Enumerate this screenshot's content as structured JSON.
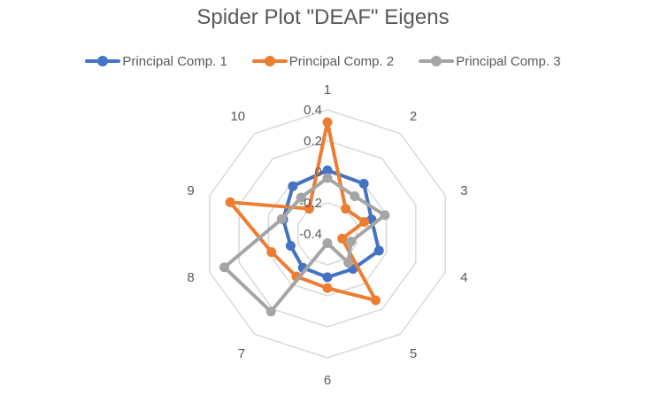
{
  "chart_data": {
    "type": "radar",
    "title": "Spider Plot \"DEAF\" Eigens",
    "categories": [
      "1",
      "2",
      "3",
      "4",
      "5",
      "6",
      "7",
      "8",
      "9",
      "10"
    ],
    "rlim": [
      -0.4,
      0.4
    ],
    "ticks": [
      "-0.4",
      "-0.2",
      "0",
      "0.2",
      "0.4"
    ],
    "grid": true,
    "legend_position": "top",
    "series": [
      {
        "name": "Principal Comp. 1",
        "color": "#4472C4",
        "values": [
          0.01,
          0.0,
          -0.1,
          -0.05,
          -0.12,
          -0.12,
          -0.13,
          -0.15,
          -0.1,
          -0.02
        ]
      },
      {
        "name": "Principal Comp. 2",
        "color": "#ED7D31",
        "values": [
          0.32,
          -0.2,
          -0.15,
          -0.3,
          0.13,
          -0.05,
          -0.06,
          -0.02,
          0.26,
          -0.2
        ]
      },
      {
        "name": "Principal Comp. 3",
        "color": "#A5A5A5",
        "values": [
          -0.04,
          -0.1,
          -0.01,
          -0.24,
          -0.17,
          -0.34,
          0.22,
          0.3,
          -0.09,
          -0.11
        ]
      }
    ]
  },
  "edge_label": "0"
}
